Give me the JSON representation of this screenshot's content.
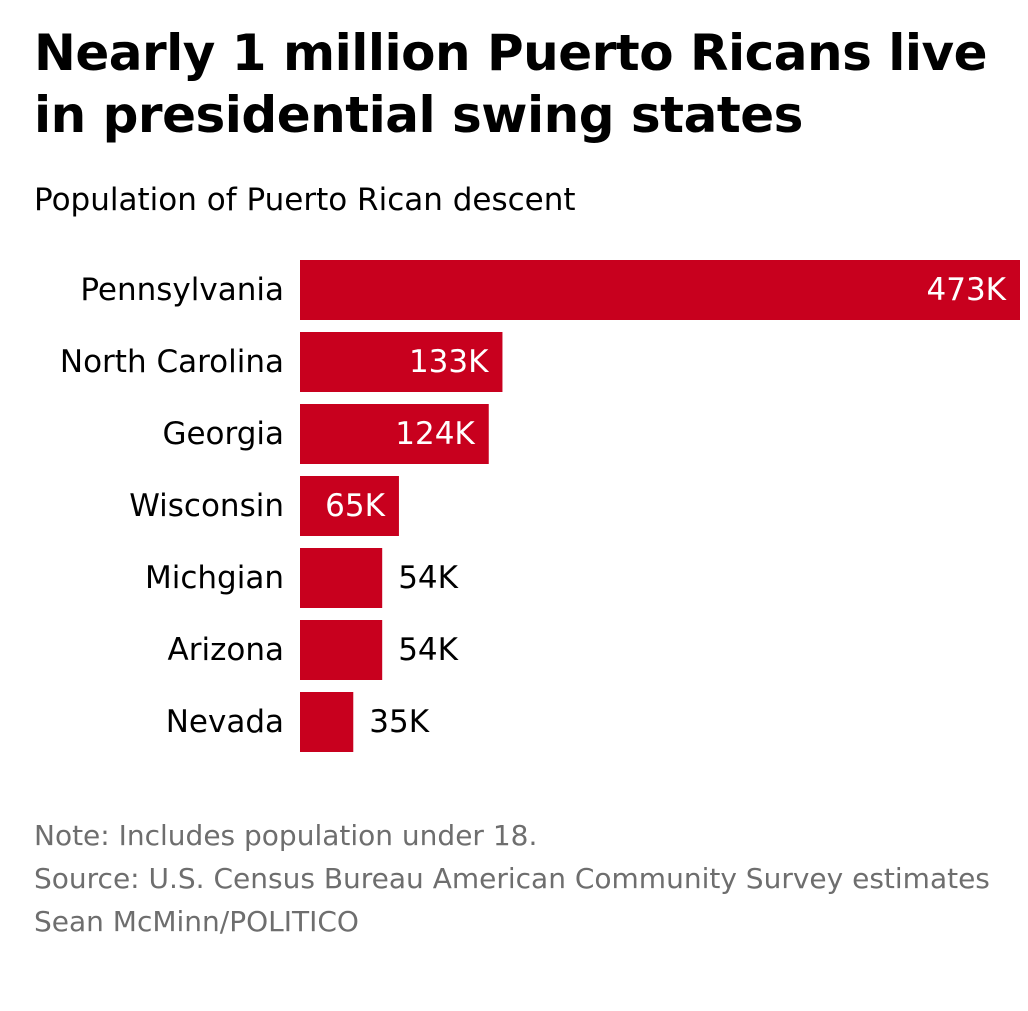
{
  "title": "Nearly 1 million Puerto Ricans live in presidential swing states",
  "subtitle": "Population of Puerto Rican descent",
  "notes": {
    "note": "Note: Includes population under 18.",
    "source": "Source: U.S. Census Bureau American Community Survey estimates",
    "credit": "Sean McMinn/POLITICO"
  },
  "colors": {
    "bar": "#c8001e",
    "label_inside": "#ffffff",
    "label_outside": "#000000",
    "notes": "#6e6e6e"
  },
  "chart_data": {
    "type": "bar",
    "orientation": "horizontal",
    "categories": [
      "Pennsylvania",
      "North Carolina",
      "Georgia",
      "Wisconsin",
      "Michgian",
      "Arizona",
      "Nevada"
    ],
    "values": [
      473,
      133,
      124,
      65,
      54,
      54,
      35
    ],
    "value_labels": [
      "473K",
      "133K",
      "124K",
      "65K",
      "54K",
      "54K",
      "35K"
    ],
    "unit": "K",
    "xlim": [
      0,
      473
    ],
    "grid": false,
    "legend": "none"
  }
}
